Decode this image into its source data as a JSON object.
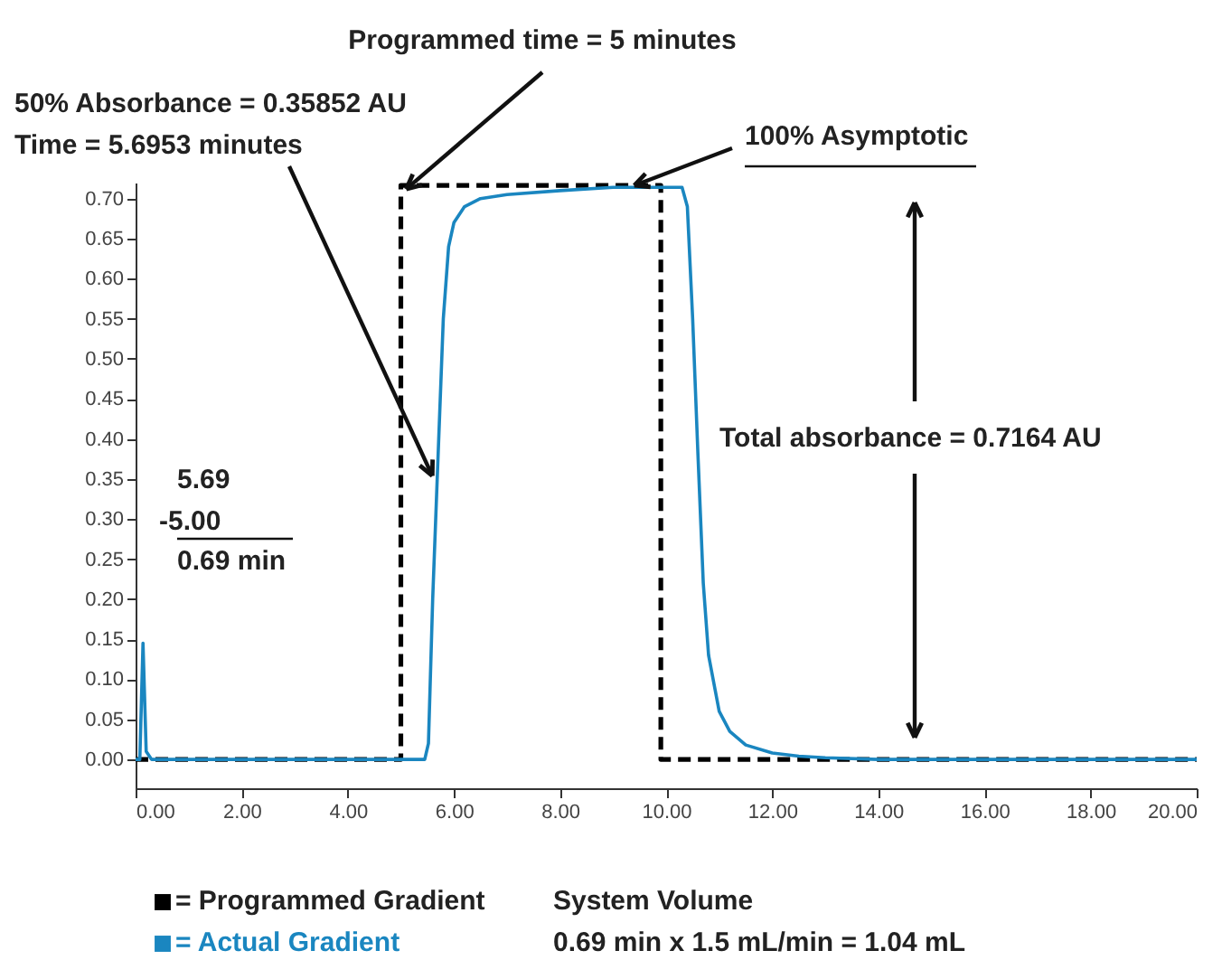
{
  "chart_data": {
    "type": "line",
    "annotations": [
      {
        "text": "Programmed time = 5 minutes",
        "x": 5,
        "y": 0.7164
      },
      "50% Absorbance = 0.35852 AU",
      {
        "text": "Time = 5.6953 minutes",
        "x": 5.6953,
        "y": 0.35852
      },
      {
        "text": "100% Asymptotic",
        "x": 9.4,
        "y": 0.7164
      },
      "Total absorbance = 0.7164 AU",
      "5.69",
      "-5.00",
      "0.69 min",
      "System Volume",
      "0.69 min x 1.5 mL/min =  1.04 mL"
    ],
    "series": [
      {
        "name": "= Programmed Gradient",
        "color": "#000000",
        "line_style": "dashed",
        "x": [
          0,
          5,
          5,
          9.9,
          9.9,
          20
        ],
        "values": [
          0,
          0,
          0.7164,
          0.7164,
          0,
          0
        ]
      },
      {
        "name": "= Actual Gradient",
        "color": "#1a86c0",
        "line_style": "solid",
        "x": [
          0,
          0.08,
          0.14,
          0.2,
          0.3,
          0.5,
          5.0,
          5.45,
          5.52,
          5.6,
          5.69,
          5.8,
          5.9,
          6.0,
          6.2,
          6.5,
          7.0,
          8.0,
          9.0,
          10.3,
          10.4,
          10.5,
          10.6,
          10.7,
          10.8,
          11.0,
          11.2,
          11.5,
          12.0,
          12.5,
          13.0,
          14,
          16,
          20
        ],
        "values": [
          0,
          0,
          0.145,
          0.01,
          0,
          0,
          0,
          0,
          0.02,
          0.2,
          0.3585,
          0.55,
          0.64,
          0.67,
          0.69,
          0.7,
          0.705,
          0.71,
          0.714,
          0.714,
          0.69,
          0.55,
          0.38,
          0.22,
          0.13,
          0.06,
          0.035,
          0.018,
          0.008,
          0.004,
          0.002,
          0,
          0,
          0
        ]
      }
    ],
    "xlim": [
      0,
      20
    ],
    "xticks": [
      {
        "value": 0,
        "label": "0.00"
      },
      {
        "value": 2,
        "label": "2.00"
      },
      {
        "value": 4,
        "label": "4.00"
      },
      {
        "value": 6,
        "label": "6.00"
      },
      {
        "value": 8,
        "label": "8.00"
      },
      {
        "value": 10,
        "label": "10.00"
      },
      {
        "value": 12,
        "label": "12.00"
      },
      {
        "value": 14,
        "label": "14.00"
      },
      {
        "value": 16,
        "label": "16.00"
      },
      {
        "value": 18,
        "label": "18.00"
      },
      {
        "value": 20,
        "label": "20.00"
      }
    ],
    "ylim": [
      -0.036,
      0.72
    ],
    "yticks": [
      {
        "value": 0,
        "label": "0.00"
      },
      {
        "value": 0.05,
        "label": "0.05"
      },
      {
        "value": 0.1,
        "label": "0.10"
      },
      {
        "value": 0.15,
        "label": "0.15"
      },
      {
        "value": 0.2,
        "label": "0.20"
      },
      {
        "value": 0.25,
        "label": "0.25"
      },
      {
        "value": 0.3,
        "label": "0.30"
      },
      {
        "value": 0.35,
        "label": "0.35"
      },
      {
        "value": 0.4,
        "label": "0.40"
      },
      {
        "value": 0.45,
        "label": "0.45"
      },
      {
        "value": 0.5,
        "label": "0.50"
      },
      {
        "value": 0.55,
        "label": "0.55"
      },
      {
        "value": 0.6,
        "label": "0.60"
      },
      {
        "value": 0.65,
        "label": "0.65"
      },
      {
        "value": 0.7,
        "label": "0.70"
      }
    ],
    "grid": false,
    "legend": "bottom left"
  }
}
